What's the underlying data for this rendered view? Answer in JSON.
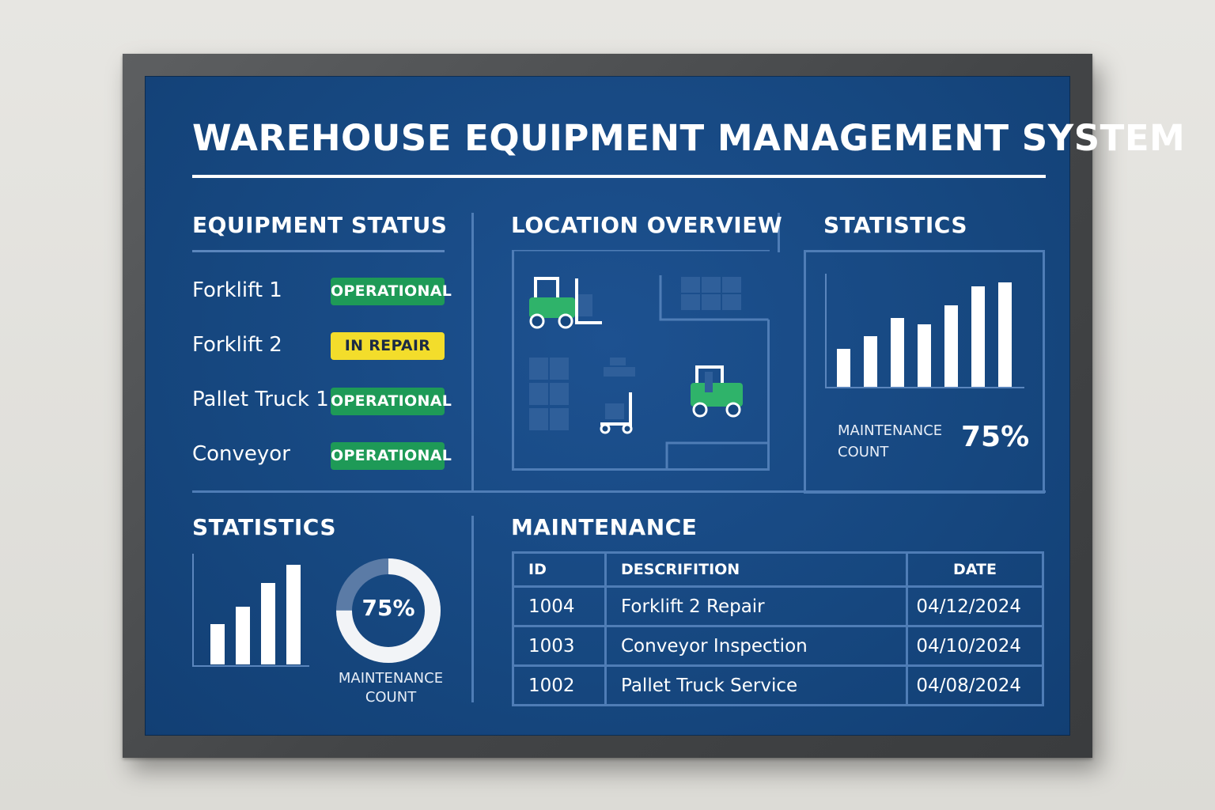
{
  "title": "WAREHOUSE EQUIPMENT MANAGEMENT SYSTEM",
  "colors": {
    "board": "#16477f",
    "frame": "#4a4c4e",
    "operational": "#1e9a57",
    "in_repair": "#f3dd2b",
    "forklift_green": "#2fb36a",
    "rule": "#4f7db6"
  },
  "equipment_status": {
    "title": "EQUIPMENT STATUS",
    "items": [
      {
        "name": "Forklift 1",
        "status": "OPERATIONAL",
        "status_kind": "ok"
      },
      {
        "name": "Forklift 2",
        "status": "IN REPAIR",
        "status_kind": "repair"
      },
      {
        "name": "Pallet Truck 1",
        "status": "OPERATIONAL",
        "status_kind": "ok"
      },
      {
        "name": "Conveyor",
        "status": "OPERATIONAL",
        "status_kind": "ok"
      }
    ]
  },
  "location_overview": {
    "title": "LOCATION OVERVIEW",
    "icons": [
      "forklift-icon",
      "shelving-icon",
      "pallet-stack-icon",
      "pallet-truck-icon",
      "forklift-icon"
    ]
  },
  "statistics_top": {
    "title": "STATISTICS",
    "label_line1": "MAINTENANCE",
    "label_line2": "COUNT",
    "value": "75%",
    "chart_data": {
      "type": "bar",
      "values": [
        3,
        4,
        5.5,
        5,
        6.5,
        8,
        8.3
      ],
      "ylim": [
        0,
        9
      ]
    }
  },
  "statistics_bottom": {
    "title": "STATISTICS",
    "donut_value": "75%",
    "donut_fraction": 0.75,
    "label_line1": "MAINTENANCE",
    "label_line2": "COUNT",
    "chart_data": {
      "type": "bar",
      "values": [
        3.3,
        4.7,
        6.6,
        8.1
      ],
      "ylim": [
        0,
        9
      ]
    }
  },
  "maintenance": {
    "title": "MAINTENANCE",
    "columns": [
      "ID",
      "DESCRIFITION",
      "DATE"
    ],
    "rows": [
      {
        "id": "1004",
        "description": "Forklift 2 Repair",
        "date": "04/12/2024"
      },
      {
        "id": "1003",
        "description": "Conveyor Inspection",
        "date": "04/10/2024"
      },
      {
        "id": "1002",
        "description": "Pallet Truck Service",
        "date": "04/08/2024"
      }
    ]
  }
}
